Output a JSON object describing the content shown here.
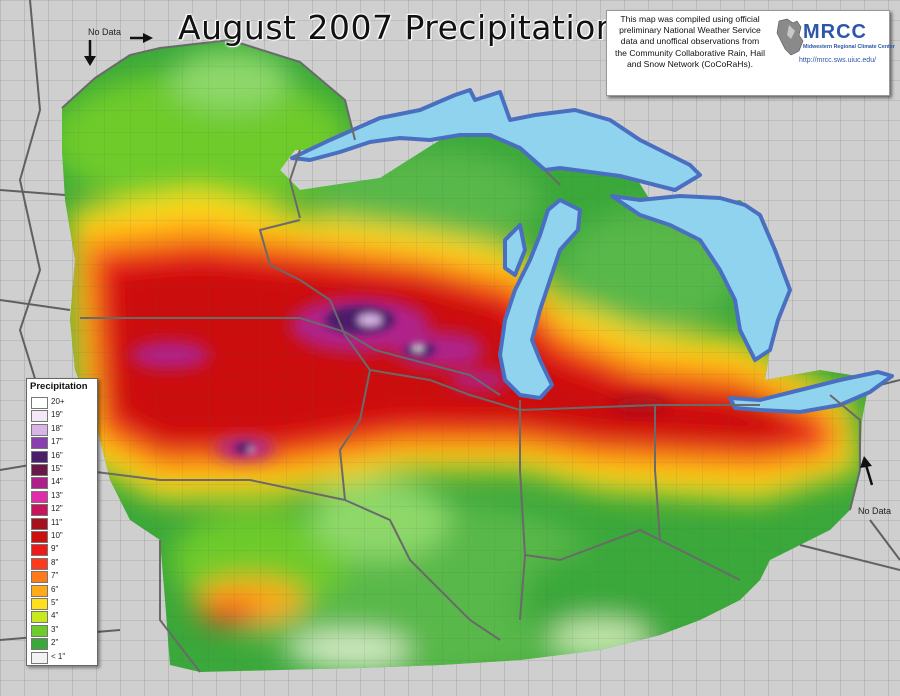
{
  "title": "August 2007 Precipitation",
  "info": {
    "line1": "This map was compiled using official",
    "line2": "preliminary National Weather Service",
    "line3": "data and unoffical observations from",
    "line4": "the Community Collaborative Rain, Hail",
    "line5": "and Snow Network (CoCoRaHs)."
  },
  "logo": {
    "name": "MRCC",
    "subtitle": "Midwestern Regional Climate Center",
    "url": "http://mrcc.sws.uiuc.edu/"
  },
  "no_data_labels": [
    "No Data",
    "No Data"
  ],
  "legend": {
    "title": "Precipitation",
    "items": [
      {
        "label": "20+",
        "color": "#ffffff"
      },
      {
        "label": "19\"",
        "color": "#f4e8f6"
      },
      {
        "label": "18\"",
        "color": "#d9b4e6"
      },
      {
        "label": "17\"",
        "color": "#8a3fb0"
      },
      {
        "label": "16\"",
        "color": "#4c1f6a"
      },
      {
        "label": "15\"",
        "color": "#6a1848"
      },
      {
        "label": "14\"",
        "color": "#b0208a"
      },
      {
        "label": "13\"",
        "color": "#e02ca8"
      },
      {
        "label": "12\"",
        "color": "#c8145a"
      },
      {
        "label": "11\"",
        "color": "#a8101e"
      },
      {
        "label": "10\"",
        "color": "#cc1010"
      },
      {
        "label": "9\"",
        "color": "#ee1a1a"
      },
      {
        "label": "8\"",
        "color": "#ff3a1a"
      },
      {
        "label": "7\"",
        "color": "#ff7a18"
      },
      {
        "label": "6\"",
        "color": "#ffaa18"
      },
      {
        "label": "5\"",
        "color": "#ffe01a"
      },
      {
        "label": "4\"",
        "color": "#c8e820"
      },
      {
        "label": "3\"",
        "color": "#6ecb2c"
      },
      {
        "label": "2\"",
        "color": "#3aa83a"
      },
      {
        "label": "< 1\"",
        "color": "#f2f2f2"
      }
    ]
  },
  "colors": {
    "lake": "#8fd3ee",
    "lake_outline": "#4a6fc0",
    "outside": "#cfcfcf",
    "state_line": "#707070",
    "frame": "#8a8a8a"
  }
}
